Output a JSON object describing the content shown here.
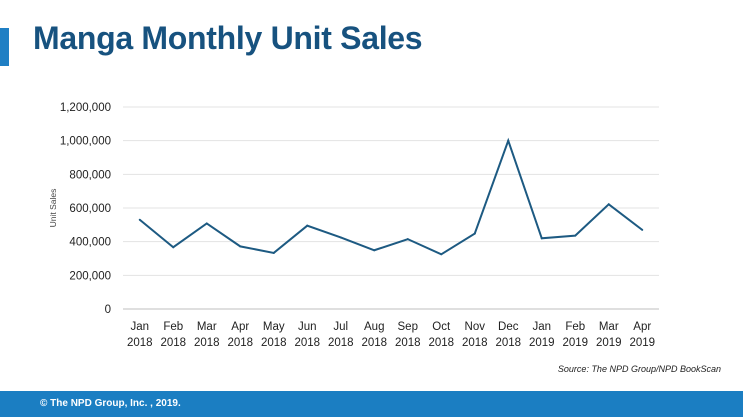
{
  "title": "Manga Monthly Unit Sales",
  "source": "Source: The NPD Group/NPD BookScan",
  "footer": "© The NPD Group, Inc. , 2019.",
  "colors": {
    "accent": "#1f7fc4",
    "title": "#17527f",
    "line": "#1d5a82",
    "footer": "#1b7ec2"
  },
  "chart_data": {
    "type": "line",
    "title": "",
    "xlabel": "",
    "ylabel": "Unit Sales",
    "ylim": [
      0,
      1200000
    ],
    "yticks": [
      "0",
      "200,000",
      "400,000",
      "600,000",
      "800,000",
      "1,000,000",
      "1,200,000"
    ],
    "grid": true,
    "categories": [
      [
        "Jan",
        "2018"
      ],
      [
        "Feb",
        "2018"
      ],
      [
        "Mar",
        "2018"
      ],
      [
        "Apr",
        "2018"
      ],
      [
        "May",
        "2018"
      ],
      [
        "Jun",
        "2018"
      ],
      [
        "Jul",
        "2018"
      ],
      [
        "Aug",
        "2018"
      ],
      [
        "Sep",
        "2018"
      ],
      [
        "Oct",
        "2018"
      ],
      [
        "Nov",
        "2018"
      ],
      [
        "Dec",
        "2018"
      ],
      [
        "Jan",
        "2019"
      ],
      [
        "Feb",
        "2019"
      ],
      [
        "Mar",
        "2019"
      ],
      [
        "Apr",
        "2019"
      ]
    ],
    "series": [
      {
        "values": [
          530000,
          367000,
          508000,
          372000,
          333000,
          495000,
          425000,
          349000,
          415000,
          325000,
          448000,
          1000000,
          420000,
          436000,
          622000,
          470000
        ]
      }
    ]
  }
}
